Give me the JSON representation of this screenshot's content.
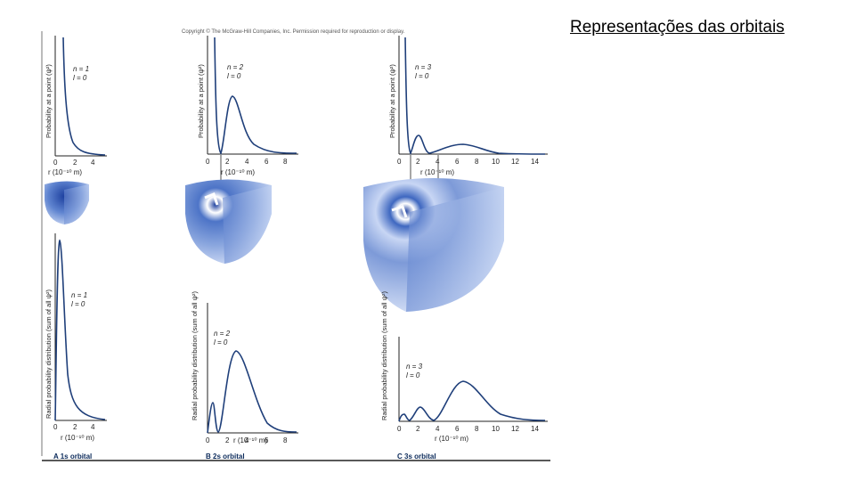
{
  "slide": {
    "title": "Representações das orbitais"
  },
  "copyright": "Copyright © The McGraw-Hill Companies, Inc. Permission required for reproduction or display.",
  "colors": {
    "curve": "#1f3f7a",
    "orbital_dark": "#1c3f9e",
    "orbital_light": "#dce6fa"
  },
  "y_labels": {
    "probability": "Probability at a point (ψ²)",
    "radial": "Radial probability distribution (sum of all ψ²)"
  },
  "x_label": "r (10⁻¹⁰ m)",
  "panels": [
    {
      "label": "A  1s orbital",
      "n": "n = 1",
      "l": "l = 0",
      "ticks": [
        "0",
        "2",
        "4"
      ]
    },
    {
      "label": "B  2s orbital",
      "n": "n = 2",
      "l": "l = 0",
      "ticks": [
        "0",
        "2",
        "4",
        "6",
        "8"
      ]
    },
    {
      "label": "C  3s orbital",
      "n": "n = 3",
      "l": "l = 0",
      "ticks": [
        "0",
        "2",
        "4",
        "6",
        "8",
        "10",
        "12",
        "14"
      ]
    }
  ]
}
